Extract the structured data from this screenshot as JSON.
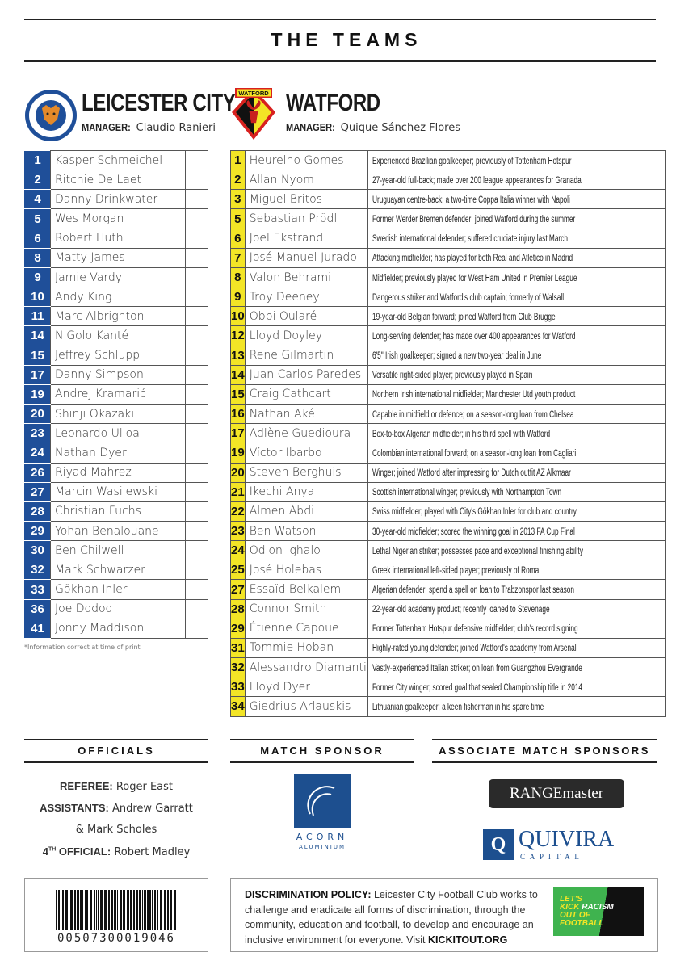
{
  "page_title": "THE TEAMS",
  "home": {
    "name": "LEICESTER CITY",
    "manager_label": "MANAGER:",
    "manager": "Claudio Ranieri",
    "crest_text": "LEICESTER CITY FOOTBALL CLUB",
    "color": "#1f4f99",
    "players": [
      [
        "1",
        "Kasper Schmeichel"
      ],
      [
        "2",
        "Ritchie De Laet"
      ],
      [
        "4",
        "Danny Drinkwater"
      ],
      [
        "5",
        "Wes Morgan"
      ],
      [
        "6",
        "Robert Huth"
      ],
      [
        "8",
        "Matty James"
      ],
      [
        "9",
        "Jamie Vardy"
      ],
      [
        "10",
        "Andy King"
      ],
      [
        "11",
        "Marc Albrighton"
      ],
      [
        "14",
        "N'Golo Kanté"
      ],
      [
        "15",
        "Jeffrey Schlupp"
      ],
      [
        "17",
        "Danny Simpson"
      ],
      [
        "19",
        "Andrej Kramarić"
      ],
      [
        "20",
        "Shinji Okazaki"
      ],
      [
        "23",
        "Leonardo Ulloa"
      ],
      [
        "24",
        "Nathan Dyer"
      ],
      [
        "26",
        "Riyad Mahrez"
      ],
      [
        "27",
        "Marcin Wasilewski"
      ],
      [
        "28",
        "Christian Fuchs"
      ],
      [
        "29",
        "Yohan Benalouane"
      ],
      [
        "30",
        "Ben Chilwell"
      ],
      [
        "32",
        "Mark Schwarzer"
      ],
      [
        "33",
        "Gökhan Inler"
      ],
      [
        "36",
        "Joe Dodoo"
      ],
      [
        "41",
        "Jonny Maddison"
      ]
    ]
  },
  "footnote": "*Information correct at time of print",
  "away": {
    "name": "WATFORD",
    "manager_label": "MANAGER:",
    "manager": "Quique Sánchez Flores",
    "crest_text": "WATFORD",
    "color": "#f3e526",
    "players": [
      [
        "1",
        "Heurelho Gomes",
        "Experienced Brazilian goalkeeper; previously of Tottenham Hotspur"
      ],
      [
        "2",
        "Allan Nyom",
        "27-year-old full-back; made over 200 league appearances for Granada"
      ],
      [
        "3",
        "Miguel Britos",
        "Uruguayan centre-back; a two-time Coppa Italia winner with Napoli"
      ],
      [
        "5",
        "Sebastian Prödl",
        "Former Werder Bremen defender; joined Watford during the summer"
      ],
      [
        "6",
        "Joel Ekstrand",
        "Swedish international defender; suffered cruciate injury last March"
      ],
      [
        "7",
        "José Manuel Jurado",
        "Attacking midfielder; has played for both Real and Atlético in Madrid"
      ],
      [
        "8",
        "Valon Behrami",
        "Midfielder; previously played for West Ham United in Premier League"
      ],
      [
        "9",
        "Troy Deeney",
        "Dangerous striker and Watford's club captain; formerly of Walsall"
      ],
      [
        "10",
        "Obbi Oularé",
        "19-year-old Belgian forward; joined Watford from Club Brugge"
      ],
      [
        "12",
        "Lloyd Doyley",
        "Long-serving defender; has made over 400 appearances for Watford"
      ],
      [
        "13",
        "Rene Gilmartin",
        "6'5\" Irish goalkeeper; signed a new two-year deal in June"
      ],
      [
        "14",
        "Juan Carlos Paredes",
        "Versatile right-sided player; previously played in Spain"
      ],
      [
        "15",
        "Craig Cathcart",
        "Northern Irish international midfielder; Manchester Utd youth product"
      ],
      [
        "16",
        "Nathan Aké",
        "Capable in midfield or defence; on a season-long loan from Chelsea"
      ],
      [
        "17",
        "Adlène Guedioura",
        "Box-to-box Algerian midfielder; in his third spell with Watford"
      ],
      [
        "19",
        "Víctor Ibarbo",
        "Colombian international forward; on a season-long loan from Cagliari"
      ],
      [
        "20",
        "Steven Berghuis",
        "Winger; joined Watford after impressing for Dutch outfit AZ Alkmaar"
      ],
      [
        "21",
        "Ikechi Anya",
        "Scottish international winger; previously with Northampton Town"
      ],
      [
        "22",
        "Almen Abdi",
        "Swiss midfielder; played with City's Gökhan Inler for club and country"
      ],
      [
        "23",
        "Ben Watson",
        "30-year-old midfielder; scored the winning goal in 2013 FA Cup Final"
      ],
      [
        "24",
        "Odion Ighalo",
        "Lethal Nigerian striker; possesses pace and exceptional finishing ability"
      ],
      [
        "25",
        "José Holebas",
        "Greek international left-sided player; previously of Roma"
      ],
      [
        "27",
        "Essaïd Belkalem",
        "Algerian defender; spend a spell on loan to Trabzonspor last season"
      ],
      [
        "28",
        "Connor Smith",
        "22-year-old academy product; recently loaned to Stevenage"
      ],
      [
        "29",
        "Étienne Capoue",
        "Former Tottenham Hotspur defensive midfielder; club's record signing"
      ],
      [
        "31",
        "Tommie Hoban",
        "Highly-rated young defender; joined Watford's academy from Arsenal"
      ],
      [
        "32",
        "Alessandro Diamanti",
        "Vastly-experienced Italian striker; on loan from Guangzhou Evergrande"
      ],
      [
        "33",
        "Lloyd Dyer",
        "Former City winger; scored goal that sealed Championship title in 2014"
      ],
      [
        "34",
        "Giedrius Arlauskis",
        "Lithuanian goalkeeper; a keen fisherman in his spare time"
      ]
    ]
  },
  "officials": {
    "heading": "OFFICIALS",
    "referee_label": "REFEREE:",
    "referee": "Roger East",
    "assistants_label": "ASSISTANTS:",
    "assistants_1": "Andrew Garratt",
    "assistants_2": "& Mark Scholes",
    "fourth_label_num": "4",
    "fourth_label_sup": "TH",
    "fourth_label": " OFFICIAL:",
    "fourth": "Robert Madley"
  },
  "match_sponsor": {
    "heading": "MATCH SPONSOR",
    "name": "ACORN",
    "sub": "ALUMINIUM"
  },
  "associate_sponsors": {
    "heading": "ASSOCIATE MATCH SPONSORS",
    "rangemaster": "RANGEmaster",
    "quivira": "QUIVIRA",
    "quivira_sub": "C A P I T A L"
  },
  "barcode": "00507300019046",
  "policy": {
    "label": "DISCRIMINATION POLICY:",
    "text": " Leicester City Football Club works to challenge and eradicate all forms of discrimination, through the community, education and football, to develop and encourage an inclusive environment for everyone. Visit ",
    "link": "KICKITOUT.ORG",
    "logo_text": "LET'S KICK RACISM OUT OF FOOTBALL"
  }
}
